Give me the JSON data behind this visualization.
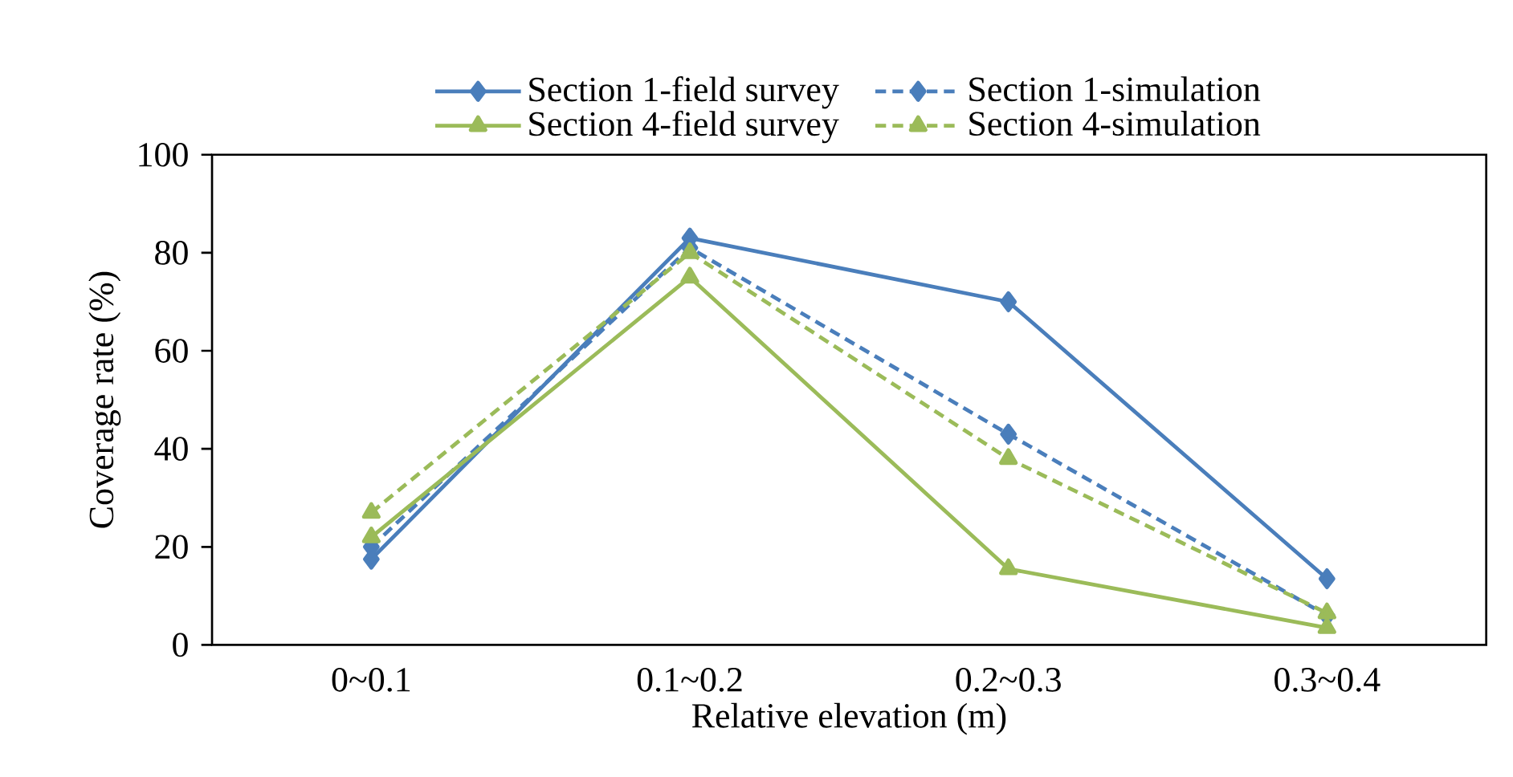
{
  "chart_data": {
    "type": "line",
    "xlabel": "Relative elevation (m)",
    "ylabel": "Coverage rate (%)",
    "categories": [
      "0~0.1",
      "0.1~0.2",
      "0.2~0.3",
      "0.3~0.4"
    ],
    "series": [
      {
        "name": "Section 1-field survey",
        "color": "#4a7ebb",
        "marker": "diamond",
        "line_style": "solid",
        "values": [
          17.5,
          83,
          70,
          13.5
        ]
      },
      {
        "name": "Section 1-simulation",
        "color": "#4a7ebb",
        "marker": "diamond",
        "line_style": "dashed",
        "values": [
          20,
          81,
          43,
          6
        ]
      },
      {
        "name": "Section 4-field survey",
        "color": "#9bbb59",
        "marker": "triangle",
        "line_style": "solid",
        "values": [
          22,
          75,
          15.5,
          3.5
        ]
      },
      {
        "name": "Section 4-simulation",
        "color": "#9bbb59",
        "marker": "triangle",
        "line_style": "dashed",
        "values": [
          27,
          80,
          38,
          6.5
        ]
      }
    ],
    "ylim": [
      0,
      100
    ],
    "yticks": [
      0,
      20,
      40,
      60,
      80,
      100
    ],
    "grid": false,
    "legend": "top"
  }
}
